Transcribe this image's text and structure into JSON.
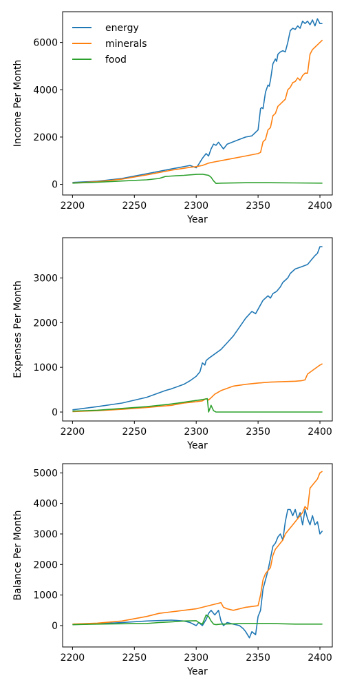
{
  "chart_data": [
    {
      "type": "line",
      "xlabel": "Year",
      "ylabel": "Income Per Month",
      "xlim": [
        2192,
        2410
      ],
      "ylim": [
        -450,
        7300
      ],
      "xticks": [
        2200,
        2250,
        2300,
        2350,
        2400
      ],
      "yticks": [
        0,
        2000,
        4000,
        6000
      ],
      "legend": "upper-left",
      "series": [
        {
          "name": "energy",
          "color": "#1f77b4",
          "x": [
            2200,
            2220,
            2240,
            2260,
            2280,
            2295,
            2300,
            2302,
            2305,
            2308,
            2310,
            2312,
            2314,
            2316,
            2318,
            2322,
            2325,
            2330,
            2335,
            2340,
            2345,
            2348,
            2350,
            2352,
            2353,
            2354,
            2356,
            2358,
            2359,
            2360,
            2362,
            2364,
            2365,
            2366,
            2368,
            2370,
            2372,
            2374,
            2376,
            2378,
            2380,
            2382,
            2384,
            2386,
            2388,
            2390,
            2392,
            2394,
            2396,
            2398,
            2400,
            2402
          ],
          "y": [
            80,
            130,
            250,
            450,
            650,
            800,
            700,
            850,
            1100,
            1300,
            1200,
            1500,
            1700,
            1650,
            1780,
            1500,
            1700,
            1800,
            1900,
            2000,
            2050,
            2200,
            2300,
            3200,
            3250,
            3200,
            3900,
            4200,
            4150,
            4400,
            5100,
            5300,
            5200,
            5500,
            5600,
            5650,
            5600,
            6000,
            6500,
            6600,
            6550,
            6700,
            6600,
            6900,
            6800,
            6900,
            6750,
            6950,
            6700,
            7000,
            6800,
            6800
          ]
        },
        {
          "name": "minerals",
          "color": "#ff7f0e",
          "x": [
            2200,
            2220,
            2240,
            2260,
            2280,
            2295,
            2300,
            2305,
            2310,
            2315,
            2320,
            2330,
            2340,
            2350,
            2352,
            2354,
            2356,
            2358,
            2360,
            2362,
            2364,
            2366,
            2368,
            2370,
            2372,
            2374,
            2376,
            2378,
            2380,
            2382,
            2384,
            2386,
            2388,
            2390,
            2392,
            2394,
            2396,
            2398,
            2400,
            2402
          ],
          "y": [
            60,
            110,
            220,
            400,
            600,
            720,
            750,
            800,
            900,
            950,
            1000,
            1100,
            1200,
            1300,
            1350,
            1800,
            1900,
            2300,
            2400,
            2900,
            3000,
            3300,
            3400,
            3500,
            3600,
            4000,
            4100,
            4300,
            4350,
            4500,
            4400,
            4600,
            4700,
            4700,
            5500,
            5700,
            5800,
            5900,
            6000,
            6100
          ]
        },
        {
          "name": "food",
          "color": "#2ca02c",
          "x": [
            2200,
            2220,
            2240,
            2260,
            2270,
            2275,
            2280,
            2290,
            2300,
            2305,
            2310,
            2312,
            2314,
            2316,
            2320,
            2340,
            2360,
            2380,
            2402
          ],
          "y": [
            50,
            90,
            140,
            190,
            250,
            330,
            350,
            380,
            420,
            430,
            380,
            300,
            150,
            40,
            50,
            70,
            70,
            60,
            50
          ]
        }
      ]
    },
    {
      "type": "line",
      "xlabel": "Year",
      "ylabel": "Expenses Per Month",
      "xlim": [
        2192,
        2410
      ],
      "ylim": [
        -200,
        3900
      ],
      "xticks": [
        2200,
        2250,
        2300,
        2350,
        2400
      ],
      "yticks": [
        0,
        1000,
        2000,
        3000
      ],
      "series": [
        {
          "name": "energy",
          "color": "#1f77b4",
          "x": [
            2200,
            2220,
            2240,
            2260,
            2275,
            2280,
            2290,
            2295,
            2300,
            2303,
            2305,
            2307,
            2308,
            2310,
            2315,
            2320,
            2325,
            2330,
            2335,
            2340,
            2345,
            2348,
            2350,
            2352,
            2354,
            2356,
            2358,
            2360,
            2362,
            2365,
            2368,
            2370,
            2372,
            2374,
            2376,
            2380,
            2385,
            2390,
            2393,
            2396,
            2398,
            2400,
            2402
          ],
          "y": [
            50,
            120,
            200,
            330,
            480,
            520,
            620,
            700,
            800,
            900,
            1100,
            1050,
            1150,
            1200,
            1300,
            1400,
            1550,
            1700,
            1900,
            2100,
            2250,
            2200,
            2300,
            2400,
            2500,
            2550,
            2600,
            2550,
            2650,
            2700,
            2800,
            2900,
            2950,
            3000,
            3100,
            3200,
            3250,
            3300,
            3400,
            3500,
            3550,
            3700,
            3700
          ]
        },
        {
          "name": "minerals",
          "color": "#ff7f0e",
          "x": [
            2200,
            2220,
            2240,
            2260,
            2280,
            2290,
            2300,
            2305,
            2308,
            2310,
            2312,
            2315,
            2320,
            2325,
            2330,
            2340,
            2350,
            2360,
            2370,
            2380,
            2385,
            2388,
            2390,
            2395,
            2400,
            2402
          ],
          "y": [
            10,
            30,
            60,
            100,
            150,
            200,
            230,
            250,
            300,
            270,
            320,
            400,
            480,
            530,
            580,
            620,
            650,
            670,
            680,
            690,
            700,
            720,
            850,
            950,
            1050,
            1080
          ]
        },
        {
          "name": "food",
          "color": "#2ca02c",
          "x": [
            2200,
            2220,
            2240,
            2260,
            2270,
            2280,
            2290,
            2300,
            2305,
            2309,
            2310,
            2312,
            2314,
            2316,
            2320,
            2340,
            2360,
            2380,
            2402
          ],
          "y": [
            20,
            40,
            80,
            120,
            150,
            180,
            220,
            260,
            280,
            300,
            0,
            150,
            30,
            0,
            0,
            0,
            0,
            0,
            0
          ]
        }
      ]
    },
    {
      "type": "line",
      "xlabel": "Year",
      "ylabel": "Balance Per Month",
      "xlim": [
        2192,
        2410
      ],
      "ylim": [
        -700,
        5300
      ],
      "xticks": [
        2200,
        2250,
        2300,
        2350,
        2400
      ],
      "yticks": [
        0,
        1000,
        2000,
        3000,
        4000,
        5000
      ],
      "series": [
        {
          "name": "energy",
          "color": "#1f77b4",
          "x": [
            2200,
            2220,
            2240,
            2260,
            2280,
            2290,
            2295,
            2300,
            2302,
            2305,
            2308,
            2310,
            2312,
            2315,
            2318,
            2320,
            2322,
            2325,
            2330,
            2335,
            2338,
            2340,
            2343,
            2345,
            2348,
            2350,
            2352,
            2354,
            2356,
            2358,
            2360,
            2362,
            2364,
            2366,
            2368,
            2370,
            2372,
            2374,
            2376,
            2378,
            2380,
            2382,
            2384,
            2386,
            2388,
            2390,
            2392,
            2394,
            2396,
            2398,
            2400,
            2402
          ],
          "y": [
            30,
            60,
            100,
            150,
            180,
            150,
            100,
            0,
            100,
            0,
            200,
            400,
            500,
            350,
            500,
            150,
            0,
            100,
            50,
            0,
            -100,
            -200,
            -400,
            -200,
            -300,
            300,
            500,
            1200,
            1500,
            1800,
            2200,
            2600,
            2700,
            2900,
            3000,
            2800,
            3400,
            3800,
            3800,
            3600,
            3800,
            3500,
            3700,
            3300,
            3800,
            3500,
            3300,
            3600,
            3300,
            3400,
            3000,
            3100
          ]
        },
        {
          "name": "minerals",
          "color": "#ff7f0e",
          "x": [
            2200,
            2220,
            2240,
            2260,
            2270,
            2280,
            2290,
            2300,
            2305,
            2310,
            2315,
            2320,
            2322,
            2325,
            2330,
            2340,
            2350,
            2352,
            2354,
            2356,
            2358,
            2360,
            2362,
            2364,
            2366,
            2368,
            2370,
            2372,
            2374,
            2376,
            2378,
            2380,
            2382,
            2384,
            2386,
            2388,
            2390,
            2392,
            2394,
            2396,
            2398,
            2400,
            2402
          ],
          "y": [
            50,
            80,
            150,
            300,
            400,
            450,
            500,
            550,
            600,
            650,
            700,
            750,
            600,
            550,
            500,
            600,
            650,
            1000,
            1500,
            1700,
            1800,
            1900,
            2300,
            2500,
            2600,
            2700,
            2800,
            3000,
            3100,
            3200,
            3300,
            3400,
            3500,
            3600,
            3700,
            3900,
            3800,
            4500,
            4600,
            4700,
            4800,
            5000,
            5050
          ]
        },
        {
          "name": "food",
          "color": "#2ca02c",
          "x": [
            2200,
            2220,
            2240,
            2260,
            2270,
            2280,
            2290,
            2300,
            2302,
            2305,
            2308,
            2310,
            2312,
            2314,
            2316,
            2320,
            2340,
            2360,
            2380,
            2402
          ],
          "y": [
            30,
            50,
            60,
            70,
            100,
            120,
            150,
            160,
            100,
            50,
            350,
            300,
            150,
            50,
            30,
            50,
            70,
            70,
            50,
            50
          ]
        }
      ]
    }
  ]
}
